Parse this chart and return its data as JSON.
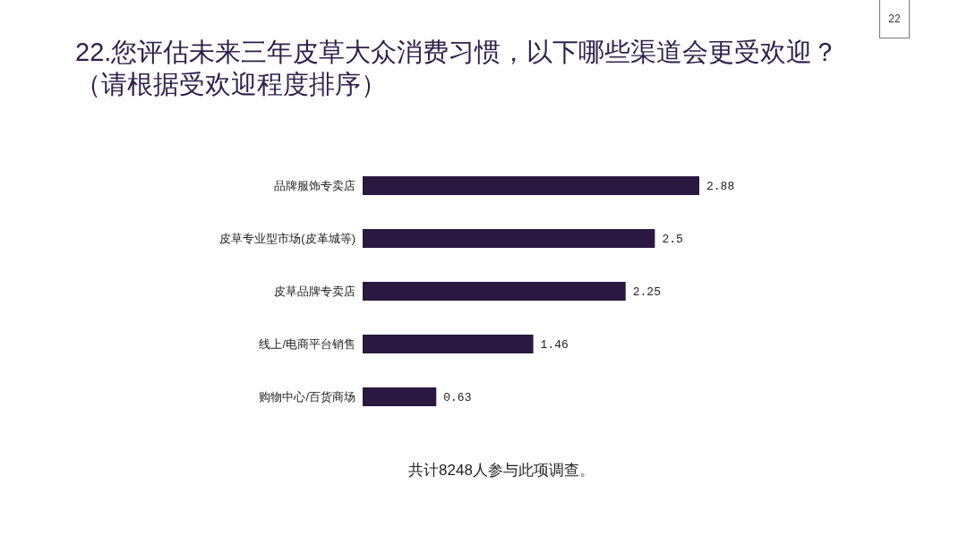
{
  "chart_data": {
    "type": "bar",
    "orientation": "horizontal",
    "title": "22.您评估未来三年皮草大众消费习惯，以下哪些渠道会更受欢迎？（请根据受欢迎程度排序）",
    "categories": [
      "品牌服饰专卖店",
      "皮草专业型市场(皮革城等)",
      "皮草品牌专卖店",
      "线上/电商平台销售",
      "购物中心/百货商场"
    ],
    "values": [
      2.88,
      2.5,
      2.25,
      1.46,
      0.63
    ],
    "color": "#2a1840",
    "data_labels": true,
    "annotations": [
      "共计8248人参与此项调查。",
      "22"
    ]
  }
}
